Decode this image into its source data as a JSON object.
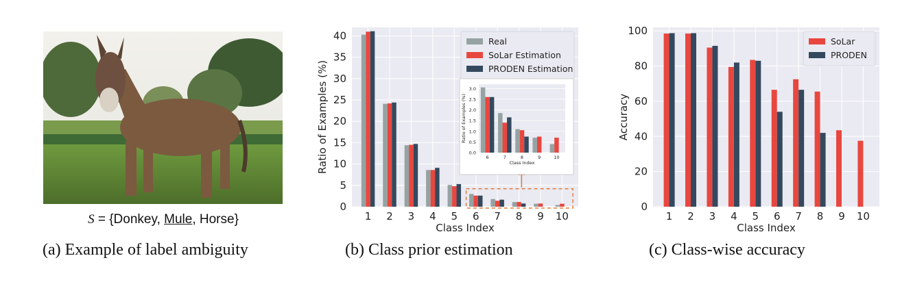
{
  "panel_a": {
    "set_symbol": "S",
    "set_open": " = {Donkey, ",
    "set_mule": "Mule",
    "set_close": ", Horse}",
    "caption": "(a) Example of label ambiguity",
    "photo_icon": "donkey-photo"
  },
  "panel_b": {
    "caption": "(b) Class prior estimation"
  },
  "panel_c": {
    "caption": "(c) Class-wise accuracy"
  },
  "colors": {
    "real": "#95a3a2",
    "solar": "#e8473f",
    "proden": "#34495e",
    "bg": "#eaeaf2"
  },
  "chart_data": [
    {
      "type": "bar",
      "id": "class-prior",
      "title": "",
      "xlabel": "Class Index",
      "ylabel": "Ratio of Examples (%)",
      "categories": [
        "1",
        "2",
        "3",
        "4",
        "5",
        "6",
        "7",
        "8",
        "9",
        "10"
      ],
      "ylim": [
        0,
        42
      ],
      "yticks": [
        0,
        5,
        10,
        15,
        20,
        25,
        30,
        35,
        40
      ],
      "legend_position": "top-right",
      "series": [
        {
          "name": "Real",
          "values": [
            40.3,
            24.1,
            14.4,
            8.6,
            5.1,
            3.0,
            1.8,
            1.1,
            0.7,
            0.4
          ]
        },
        {
          "name": "SoLar Estimation",
          "values": [
            41.0,
            24.2,
            14.5,
            8.6,
            4.8,
            2.6,
            1.4,
            1.1,
            0.75,
            0.7
          ]
        },
        {
          "name": "PRODEN Estimation",
          "values": [
            41.1,
            24.4,
            14.7,
            9.1,
            5.3,
            2.6,
            1.65,
            0.75,
            0.0,
            0.0
          ]
        }
      ],
      "inset": {
        "xlabel": "Class Index",
        "ylabel": "Ratio of Examples (%)",
        "categories": [
          "6",
          "7",
          "8",
          "9",
          "10"
        ],
        "ylim": [
          0,
          3.2
        ],
        "yticks": [
          "0.0",
          "0.5",
          "1.0",
          "1.5",
          "2.0",
          "2.5",
          "3.0"
        ],
        "series": [
          {
            "name": "Real",
            "values": [
              3.05,
              1.85,
              1.1,
              0.7,
              0.4
            ]
          },
          {
            "name": "SoLar Estimation",
            "values": [
              2.6,
              1.4,
              1.05,
              0.75,
              0.7
            ]
          },
          {
            "name": "PRODEN Estimation",
            "values": [
              2.6,
              1.65,
              0.75,
              0.0,
              0.0
            ]
          }
        ]
      }
    },
    {
      "type": "bar",
      "id": "class-accuracy",
      "title": "",
      "xlabel": "Class Index",
      "ylabel": "Accuracy",
      "categories": [
        "1",
        "2",
        "3",
        "4",
        "5",
        "6",
        "7",
        "8",
        "9",
        "10"
      ],
      "ylim": [
        0,
        102
      ],
      "yticks": [
        0,
        20,
        40,
        60,
        80,
        100
      ],
      "legend_position": "top-right",
      "series": [
        {
          "name": "SoLar",
          "values": [
            98.5,
            98.5,
            90.5,
            79.5,
            83.5,
            66.5,
            72.5,
            65.5,
            43.5,
            37.5
          ]
        },
        {
          "name": "PRODEN",
          "values": [
            98.7,
            98.7,
            91.5,
            82.0,
            83.0,
            54.0,
            66.5,
            42.0,
            0,
            0
          ]
        }
      ]
    }
  ]
}
